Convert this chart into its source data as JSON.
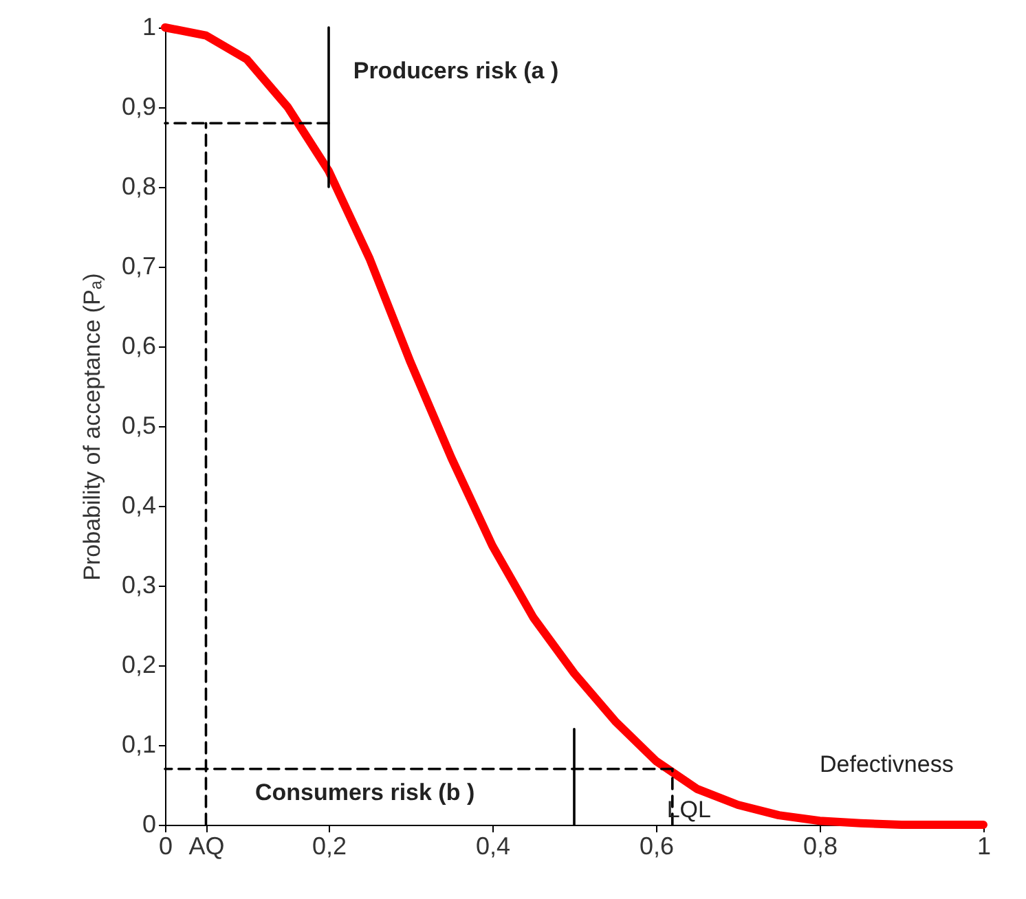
{
  "chart_data": {
    "type": "line",
    "ylabel": "Probability of acceptance  (Pₐ)",
    "xlim": [
      0,
      1
    ],
    "ylim": [
      0,
      1
    ],
    "xticks": [
      0,
      {
        "value": 0.05,
        "label": "AQ"
      },
      {
        "value": 0.2,
        "label": "0,2"
      },
      {
        "value": 0.4,
        "label": "0,4"
      },
      {
        "value": 0.6,
        "label": "0,6"
      },
      {
        "value": 0.8,
        "label": "0,8"
      },
      1
    ],
    "yticks": [
      0,
      {
        "value": 0.1,
        "label": "0,1"
      },
      {
        "value": 0.2,
        "label": "0,2"
      },
      {
        "value": 0.3,
        "label": "0,3"
      },
      {
        "value": 0.4,
        "label": "0,4"
      },
      {
        "value": 0.5,
        "label": "0,5"
      },
      {
        "value": 0.6,
        "label": "0,6"
      },
      {
        "value": 0.7,
        "label": "0,7"
      },
      {
        "value": 0.8,
        "label": "0,8"
      },
      {
        "value": 0.9,
        "label": "0,9"
      },
      1
    ],
    "grid": false,
    "marker": "none",
    "series": [
      {
        "color": "#ff0000",
        "line_style": "solid",
        "x": [
          0,
          0.05,
          0.1,
          0.15,
          0.2,
          0.25,
          0.3,
          0.35,
          0.4,
          0.45,
          0.5,
          0.55,
          0.6,
          0.65,
          0.7,
          0.75,
          0.8,
          0.85,
          0.9,
          0.95,
          1
        ],
        "values": [
          1,
          0.99,
          0.96,
          0.9,
          0.82,
          0.71,
          0.58,
          0.46,
          0.35,
          0.26,
          0.19,
          0.13,
          0.08,
          0.045,
          0.025,
          0.012,
          0.005,
          0.002,
          0,
          0,
          0
        ]
      },
      {
        "color": "#000000",
        "line_style": "dashed",
        "x": [
          0.2,
          0
        ],
        "values": [
          0.88,
          0.88
        ]
      },
      {
        "color": "#000000",
        "line_style": "dashed",
        "x": [
          0.05,
          0.05
        ],
        "values": [
          0,
          0.88
        ]
      },
      {
        "color": "#000000",
        "line_style": "dashed",
        "x": [
          0.62,
          0
        ],
        "values": [
          0.07,
          0.07
        ]
      },
      {
        "color": "#000000",
        "line_style": "dashed",
        "x": [
          0.62,
          0.62
        ],
        "values": [
          0,
          0.07
        ]
      },
      {
        "color": "#000000",
        "line_style": "solid",
        "x": [
          0.2,
          0.2
        ],
        "values": [
          0.8,
          1
        ]
      },
      {
        "color": "#000000",
        "line_style": "solid",
        "x": [
          0.5,
          0.5
        ],
        "values": [
          0,
          0.12
        ]
      }
    ],
    "annotations": [
      "Producers risk  (a )",
      "Consumers risk  (b )",
      "Defectivness",
      {
        "text": "LQL",
        "x": 0.62,
        "y": 0.07
      }
    ]
  }
}
